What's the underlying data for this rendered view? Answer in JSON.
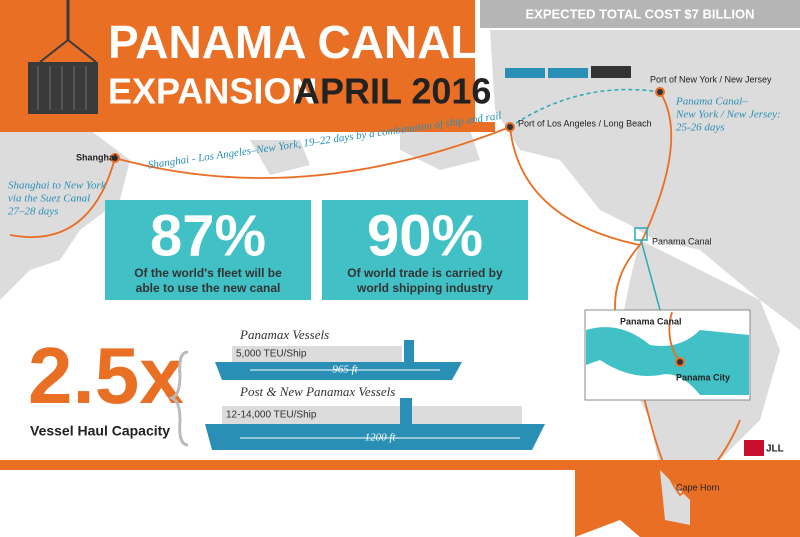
{
  "header": {
    "title": "PANAMA CANAL",
    "subtitle": "EXPANSION",
    "date": "APRIL 2016"
  },
  "cost": "EXPECTED TOTAL COST $7 BILLION",
  "map": {
    "ports": [
      "Port of New York / New Jersey",
      "Port of Los Angeles / Long Beach",
      "Shanghai",
      "Panama Canal",
      "Cape Horn"
    ],
    "routes": {
      "pacific": "Shanghai - Los Angeles–New York, 19–22 days by a combination of ship and rail",
      "suez": [
        "Shanghai to New York",
        "via the Suez Canal",
        "27–28 days"
      ],
      "panama": [
        "Panama Canal–",
        "New York / New Jersey:",
        "25-26 days"
      ]
    },
    "inset": {
      "canal": "Panama Canal",
      "city": "Panama City"
    }
  },
  "stats": [
    {
      "value": "87%",
      "text": [
        "Of the world's fleet will be",
        "able to use the new canal"
      ]
    },
    {
      "value": "90%",
      "text": [
        "Of world trade is carried by",
        "world shipping industry"
      ]
    }
  ],
  "capacity": {
    "value": "2.5x",
    "label": "Vessel Haul Capacity"
  },
  "vessels": [
    {
      "name": "Panamax Vessels",
      "capacity": "5,000 TEU/Ship",
      "length": "965 ft"
    },
    {
      "name": "Post & New Panamax Vessels",
      "capacity": "12-14,000 TEU/Ship",
      "length": "1200 ft"
    }
  ],
  "logo": "JLL"
}
